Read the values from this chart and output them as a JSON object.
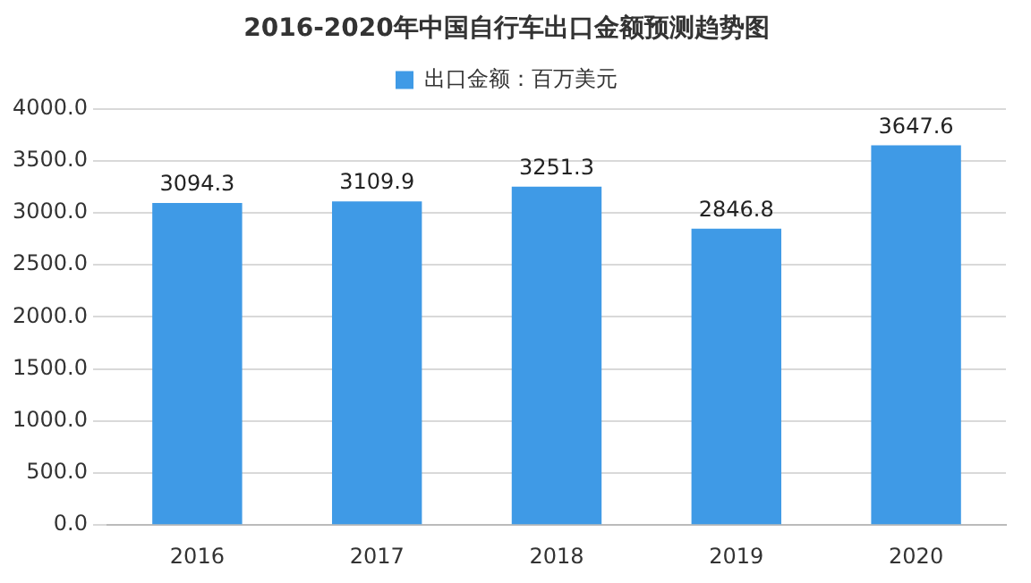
{
  "chart_data": {
    "type": "bar",
    "title": "2016-2020年中国自行车出口金额预测趋势图",
    "categories": [
      "2016",
      "2017",
      "2018",
      "2019",
      "2020"
    ],
    "series": [
      {
        "name": "出口金额：百万美元",
        "color": "#3f9ae6",
        "values": [
          3094.3,
          3109.9,
          3251.3,
          2846.8,
          3647.6
        ]
      }
    ],
    "ylim": [
      0,
      4000
    ],
    "yticks": [
      {
        "value": 0,
        "label": "0.0"
      },
      {
        "value": 500,
        "label": "500.0"
      },
      {
        "value": 1000,
        "label": "1000.0"
      },
      {
        "value": 1500,
        "label": "1500.0"
      },
      {
        "value": 2000,
        "label": "2000.0"
      },
      {
        "value": 2500,
        "label": "2500.0"
      },
      {
        "value": 3000,
        "label": "3000.0"
      },
      {
        "value": 3500,
        "label": "3500.0"
      },
      {
        "value": 4000,
        "label": "4000.0"
      }
    ],
    "grid": "y",
    "legend": "top",
    "data_labels": true
  }
}
